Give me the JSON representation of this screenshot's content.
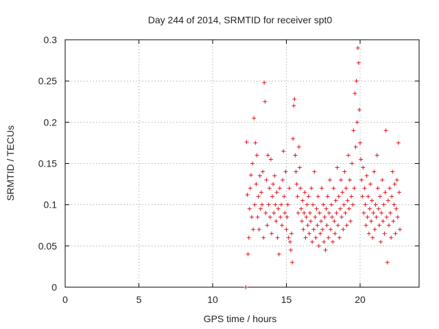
{
  "chart_data": {
    "type": "scatter",
    "title": "Day 244 of 2014, SRMTID for receiver spt0",
    "xlabel": "GPS time / hours",
    "ylabel": "SRMTID / TECUs",
    "xlim": [
      0,
      24
    ],
    "ylim": [
      0,
      0.3
    ],
    "xticks": [
      0,
      5,
      10,
      15,
      20
    ],
    "xtick_labels": [
      "0",
      "5",
      "10",
      "15",
      "20"
    ],
    "yticks": [
      0,
      0.05,
      0.1,
      0.15,
      0.2,
      0.25,
      0.3
    ],
    "ytick_labels": [
      "0",
      "0.05",
      "0.1",
      "0.15",
      "0.2",
      "0.25",
      "0.3"
    ],
    "grid": true,
    "marker": "plus",
    "color": "#e0101a",
    "series": [
      {
        "points": [
          [
            12.25,
            0.0
          ],
          [
            12.3,
            0.176
          ],
          [
            12.35,
            0.112
          ],
          [
            12.4,
            0.04
          ],
          [
            12.45,
            0.06
          ],
          [
            12.5,
            0.095
          ],
          [
            12.55,
            0.12
          ],
          [
            12.6,
            0.136
          ],
          [
            12.65,
            0.085
          ],
          [
            12.7,
            0.15
          ],
          [
            12.75,
            0.07
          ],
          [
            12.8,
            0.205
          ],
          [
            12.85,
            0.1
          ],
          [
            12.9,
            0.175
          ],
          [
            12.95,
            0.125
          ],
          [
            13.0,
            0.16
          ],
          [
            13.05,
            0.085
          ],
          [
            13.1,
            0.11
          ],
          [
            13.15,
            0.07
          ],
          [
            13.2,
            0.135
          ],
          [
            13.25,
            0.095
          ],
          [
            13.3,
            0.115
          ],
          [
            13.35,
            0.1
          ],
          [
            13.4,
            0.14
          ],
          [
            13.45,
            0.06
          ],
          [
            13.5,
            0.248
          ],
          [
            13.55,
            0.225
          ],
          [
            13.6,
            0.09
          ],
          [
            13.65,
            0.13
          ],
          [
            13.7,
            0.075
          ],
          [
            13.75,
            0.16
          ],
          [
            13.8,
            0.1
          ],
          [
            13.85,
            0.12
          ],
          [
            13.9,
            0.085
          ],
          [
            13.95,
            0.155
          ],
          [
            14.0,
            0.065
          ],
          [
            14.05,
            0.11
          ],
          [
            14.1,
            0.125
          ],
          [
            14.15,
            0.09
          ],
          [
            14.2,
            0.135
          ],
          [
            14.25,
            0.1
          ],
          [
            14.3,
            0.08
          ],
          [
            14.35,
            0.115
          ],
          [
            14.4,
            0.06
          ],
          [
            14.45,
            0.095
          ],
          [
            14.5,
            0.04
          ],
          [
            14.55,
            0.12
          ],
          [
            14.6,
            0.085
          ],
          [
            14.65,
            0.1
          ],
          [
            14.7,
            0.075
          ],
          [
            14.75,
            0.13
          ],
          [
            14.8,
            0.165
          ],
          [
            14.85,
            0.11
          ],
          [
            14.9,
            0.09
          ],
          [
            14.95,
            0.14
          ],
          [
            15.0,
            0.07
          ],
          [
            15.05,
            0.085
          ],
          [
            15.1,
            0.1
          ],
          [
            15.15,
            0.06
          ],
          [
            15.2,
            0.12
          ],
          [
            15.25,
            0.055
          ],
          [
            15.3,
            0.045
          ],
          [
            15.35,
            0.065
          ],
          [
            15.4,
            0.03
          ],
          [
            15.45,
            0.18
          ],
          [
            15.5,
            0.22
          ],
          [
            15.55,
            0.228
          ],
          [
            15.6,
            0.16
          ],
          [
            15.65,
            0.14
          ],
          [
            15.7,
            0.125
          ],
          [
            15.75,
            0.11
          ],
          [
            15.8,
            0.09
          ],
          [
            15.85,
            0.17
          ],
          [
            15.9,
            0.145
          ],
          [
            15.95,
            0.12
          ],
          [
            16.0,
            0.095
          ],
          [
            16.05,
            0.08
          ],
          [
            16.1,
            0.105
          ],
          [
            16.15,
            0.07
          ],
          [
            16.2,
            0.09
          ],
          [
            16.25,
            0.115
          ],
          [
            16.3,
            0.06
          ],
          [
            16.35,
            0.085
          ],
          [
            16.4,
            0.1
          ],
          [
            16.45,
            0.075
          ],
          [
            16.5,
            0.11
          ],
          [
            16.55,
            0.065
          ],
          [
            16.6,
            0.09
          ],
          [
            16.65,
            0.08
          ],
          [
            16.7,
            0.12
          ],
          [
            16.75,
            0.055
          ],
          [
            16.8,
            0.1
          ],
          [
            16.85,
            0.07
          ],
          [
            16.9,
            0.14
          ],
          [
            16.95,
            0.085
          ],
          [
            17.0,
            0.06
          ],
          [
            17.05,
            0.095
          ],
          [
            17.1,
            0.075
          ],
          [
            17.15,
            0.11
          ],
          [
            17.2,
            0.05
          ],
          [
            17.25,
            0.09
          ],
          [
            17.3,
            0.065
          ],
          [
            17.35,
            0.08
          ],
          [
            17.4,
            0.12
          ],
          [
            17.45,
            0.07
          ],
          [
            17.5,
            0.1
          ],
          [
            17.55,
            0.055
          ],
          [
            17.6,
            0.085
          ],
          [
            17.65,
            0.045
          ],
          [
            17.7,
            0.095
          ],
          [
            17.75,
            0.075
          ],
          [
            17.8,
            0.11
          ],
          [
            17.85,
            0.06
          ],
          [
            17.9,
            0.09
          ],
          [
            17.95,
            0.13
          ],
          [
            18.0,
            0.07
          ],
          [
            18.05,
            0.1
          ],
          [
            18.1,
            0.085
          ],
          [
            18.15,
            0.055
          ],
          [
            18.2,
            0.12
          ],
          [
            18.25,
            0.08
          ],
          [
            18.3,
            0.065
          ],
          [
            18.35,
            0.105
          ],
          [
            18.4,
            0.09
          ],
          [
            18.45,
            0.145
          ],
          [
            18.5,
            0.075
          ],
          [
            18.55,
            0.11
          ],
          [
            18.6,
            0.06
          ],
          [
            18.65,
            0.095
          ],
          [
            18.7,
            0.13
          ],
          [
            18.75,
            0.085
          ],
          [
            18.8,
            0.115
          ],
          [
            18.85,
            0.07
          ],
          [
            18.9,
            0.1
          ],
          [
            18.95,
            0.14
          ],
          [
            19.0,
            0.09
          ],
          [
            19.05,
            0.12
          ],
          [
            19.1,
            0.075
          ],
          [
            19.15,
            0.105
          ],
          [
            19.2,
            0.16
          ],
          [
            19.25,
            0.095
          ],
          [
            19.3,
            0.13
          ],
          [
            19.35,
            0.08
          ],
          [
            19.4,
            0.11
          ],
          [
            19.45,
            0.15
          ],
          [
            19.5,
            0.1
          ],
          [
            19.55,
            0.19
          ],
          [
            19.6,
            0.12
          ],
          [
            19.65,
            0.235
          ],
          [
            19.7,
            0.17
          ],
          [
            19.75,
            0.25
          ],
          [
            19.8,
            0.2
          ],
          [
            19.85,
            0.29
          ],
          [
            19.9,
            0.272
          ],
          [
            19.95,
            0.215
          ],
          [
            20.0,
            0.175
          ],
          [
            20.05,
            0.155
          ],
          [
            20.1,
            0.13
          ],
          [
            20.15,
            0.11
          ],
          [
            20.2,
            0.145
          ],
          [
            20.25,
            0.09
          ],
          [
            20.3,
            0.12
          ],
          [
            20.35,
            0.1
          ],
          [
            20.4,
            0.075
          ],
          [
            20.45,
            0.135
          ],
          [
            20.5,
            0.085
          ],
          [
            20.55,
            0.11
          ],
          [
            20.6,
            0.065
          ],
          [
            20.65,
            0.095
          ],
          [
            20.7,
            0.125
          ],
          [
            20.75,
            0.08
          ],
          [
            20.8,
            0.105
          ],
          [
            20.85,
            0.06
          ],
          [
            20.9,
            0.09
          ],
          [
            20.95,
            0.14
          ],
          [
            21.0,
            0.07
          ],
          [
            21.05,
            0.1
          ],
          [
            21.1,
            0.085
          ],
          [
            21.15,
            0.16
          ],
          [
            21.2,
            0.12
          ],
          [
            21.25,
            0.095
          ],
          [
            21.3,
            0.075
          ],
          [
            21.35,
            0.11
          ],
          [
            21.4,
            0.055
          ],
          [
            21.45,
            0.09
          ],
          [
            21.5,
            0.13
          ],
          [
            21.55,
            0.08
          ],
          [
            21.6,
            0.1
          ],
          [
            21.65,
            0.065
          ],
          [
            21.7,
            0.115
          ],
          [
            21.75,
            0.19
          ],
          [
            21.8,
            0.085
          ],
          [
            21.85,
            0.03
          ],
          [
            21.9,
            0.105
          ],
          [
            21.95,
            0.075
          ],
          [
            22.0,
            0.12
          ],
          [
            22.05,
            0.09
          ],
          [
            22.1,
            0.06
          ],
          [
            22.15,
            0.11
          ],
          [
            22.2,
            0.14
          ],
          [
            22.25,
            0.08
          ],
          [
            22.3,
            0.1
          ],
          [
            22.35,
            0.125
          ],
          [
            22.4,
            0.065
          ],
          [
            22.45,
            0.095
          ],
          [
            22.5,
            0.13
          ],
          [
            22.55,
            0.085
          ],
          [
            22.6,
            0.175
          ],
          [
            22.65,
            0.115
          ],
          [
            22.7,
            0.07
          ]
        ]
      }
    ]
  }
}
